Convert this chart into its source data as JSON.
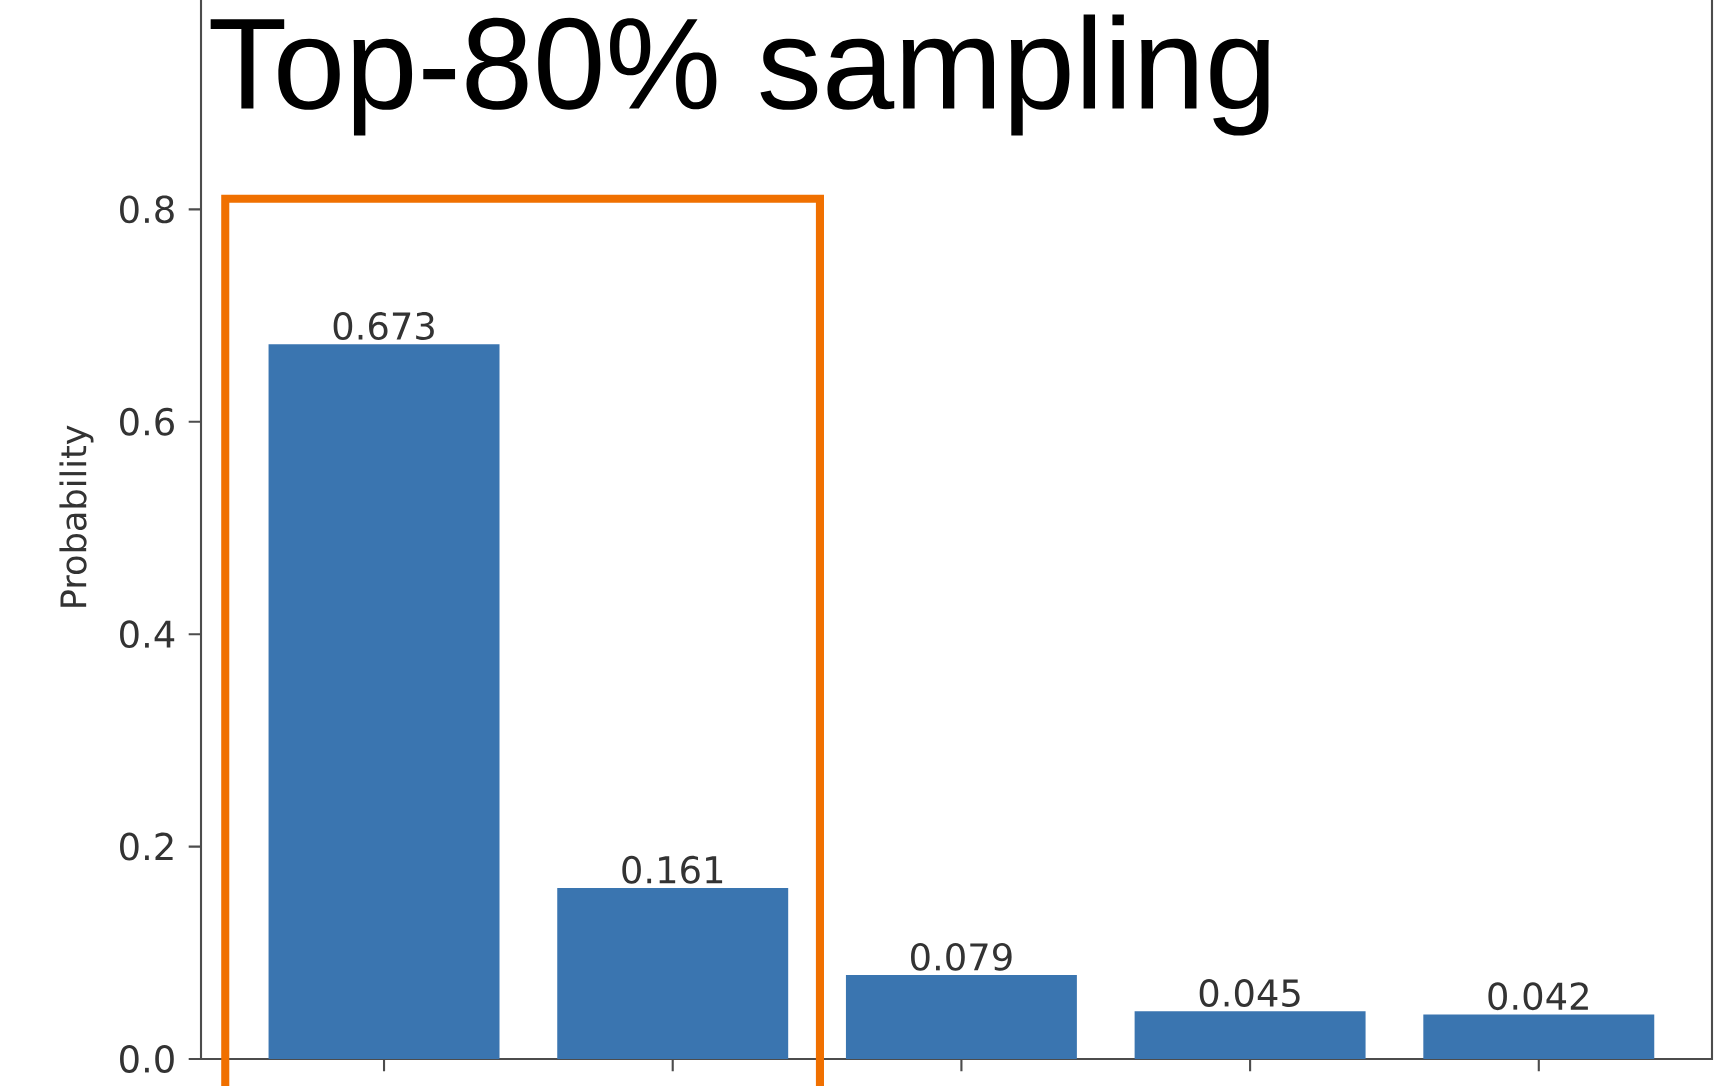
{
  "chart_data": {
    "type": "bar",
    "title": "Top-80% sampling",
    "ylabel": "Probability",
    "categories": [
      null,
      null,
      null,
      null,
      null
    ],
    "values": [
      0.673,
      0.161,
      0.079,
      0.045,
      0.042
    ],
    "color": "#3a75b0",
    "data_labels": true,
    "ylim": [
      0,
      1.02
    ],
    "yticks": [
      {
        "value": 0,
        "label": "0.0"
      },
      {
        "value": 0.2,
        "label": "0.2"
      },
      {
        "value": 0.4,
        "label": "0.4"
      },
      {
        "value": 0.6,
        "label": "0.6"
      },
      {
        "value": 0.8,
        "label": "0.8"
      }
    ],
    "tick_labels": "y"
  }
}
